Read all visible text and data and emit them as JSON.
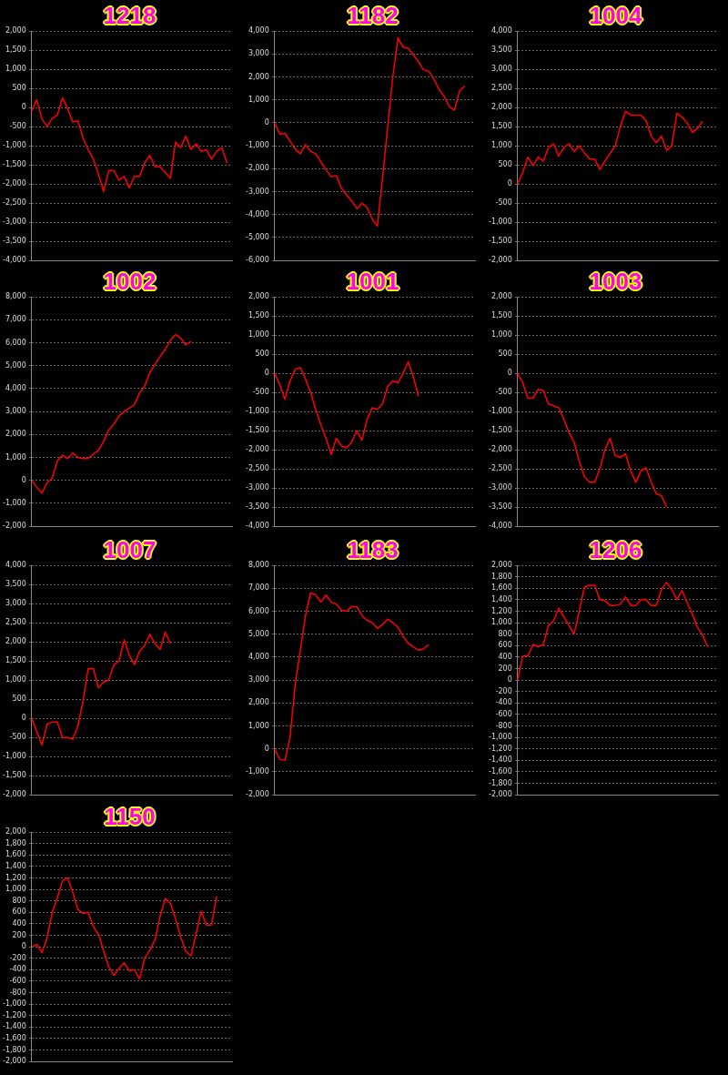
{
  "chart_data": [
    {
      "type": "line",
      "title": "1218",
      "categories": [
        null,
        null,
        null,
        null,
        null,
        null,
        null,
        null,
        null,
        null,
        null,
        null,
        null,
        null,
        null,
        null,
        null,
        null,
        null,
        null,
        null,
        null,
        null,
        null,
        null,
        null,
        null,
        null,
        null,
        null,
        null,
        null,
        null,
        null,
        null,
        null,
        null,
        null,
        null,
        null
      ],
      "series": [
        {
          "color": "#ff0000",
          "values": [
            -100,
            200,
            -300,
            -500,
            -280,
            -200,
            250,
            -30,
            -380,
            -350,
            -800,
            -1100,
            -1350,
            -1750,
            -2200,
            -1650,
            -1650,
            -1900,
            -1800,
            -2100,
            -1800,
            -1800,
            -1450,
            -1250,
            -1550,
            -1550,
            -1700,
            -1850,
            -900,
            -1050,
            -750,
            -1100,
            -950,
            -1150,
            -1100,
            -1350,
            -1150,
            -1050,
            -1450,
            null
          ]
        }
      ],
      "ylim": [
        -4000,
        2000
      ],
      "yticks": [
        {
          "value": -4000,
          "label": "-4,000"
        },
        {
          "value": -3500,
          "label": "-3,500"
        },
        {
          "value": -3000,
          "label": "-3,000"
        },
        {
          "value": -2500,
          "label": "-2,500"
        },
        {
          "value": -2000,
          "label": "-2,000"
        },
        {
          "value": -1500,
          "label": "-1,500"
        },
        {
          "value": -1000,
          "label": "-1,000"
        },
        -500,
        0,
        500,
        {
          "value": 1000,
          "label": "1,000"
        },
        {
          "value": 1500,
          "label": "1,500"
        },
        {
          "value": 2000,
          "label": "2,000"
        }
      ],
      "grid": "y",
      "tick_labels": "y",
      "marker": "none",
      "line_style": "solid"
    },
    {
      "type": "line",
      "title": "1182",
      "categories": [
        null,
        null,
        null,
        null,
        null,
        null,
        null,
        null,
        null,
        null,
        null,
        null,
        null,
        null,
        null,
        null,
        null,
        null,
        null,
        null,
        null,
        null,
        null,
        null,
        null,
        null,
        null,
        null,
        null,
        null,
        null,
        null,
        null,
        null,
        null,
        null,
        null,
        null,
        null,
        null
      ],
      "series": [
        {
          "color": "#ff0000",
          "values": [
            0,
            -500,
            -450,
            -800,
            -1150,
            -1350,
            -950,
            -1250,
            -1350,
            -1700,
            -2050,
            -2350,
            -2300,
            -2850,
            -3150,
            -3400,
            -3750,
            -3500,
            -3700,
            -4200,
            -4500,
            -2400,
            -200,
            2000,
            3700,
            3300,
            3250,
            2950,
            2650,
            2300,
            2250,
            1900,
            1450,
            1150,
            700,
            550,
            1400,
            1600,
            null,
            null
          ]
        }
      ],
      "ylim": [
        -6000,
        4000
      ],
      "yticks": [
        {
          "value": -6000,
          "label": "-6,000"
        },
        {
          "value": -5000,
          "label": "-5,000"
        },
        {
          "value": -4000,
          "label": "-4,000"
        },
        {
          "value": -3000,
          "label": "-3,000"
        },
        {
          "value": -2000,
          "label": "-2,000"
        },
        {
          "value": -1000,
          "label": "-1,000"
        },
        0,
        {
          "value": 1000,
          "label": "1,000"
        },
        {
          "value": 2000,
          "label": "2,000"
        },
        {
          "value": 3000,
          "label": "3,000"
        },
        {
          "value": 4000,
          "label": "4,000"
        }
      ],
      "grid": "y",
      "tick_labels": "y",
      "marker": "none",
      "line_style": "solid"
    },
    {
      "type": "line",
      "title": "1004",
      "categories": [
        null,
        null,
        null,
        null,
        null,
        null,
        null,
        null,
        null,
        null,
        null,
        null,
        null,
        null,
        null,
        null,
        null,
        null,
        null,
        null,
        null,
        null,
        null,
        null,
        null,
        null,
        null,
        null,
        null,
        null,
        null,
        null,
        null,
        null,
        null,
        null,
        null,
        null,
        null,
        null
      ],
      "series": [
        {
          "color": "#ff0000",
          "values": [
            0,
            300,
            700,
            480,
            700,
            600,
            950,
            1050,
            730,
            950,
            1050,
            850,
            1000,
            820,
            650,
            650,
            380,
            600,
            800,
            1000,
            1500,
            1900,
            1800,
            1800,
            1800,
            1650,
            1250,
            1080,
            1250,
            880,
            1000,
            1850,
            1750,
            1600,
            1350,
            1450,
            1640,
            null,
            null,
            null
          ]
        }
      ],
      "ylim": [
        -2000,
        4000
      ],
      "yticks": [
        {
          "value": -2000,
          "label": "-2,000"
        },
        {
          "value": -1500,
          "label": "-1,500"
        },
        {
          "value": -1000,
          "label": "-1,000"
        },
        -500,
        0,
        500,
        {
          "value": 1000,
          "label": "1,000"
        },
        {
          "value": 1500,
          "label": "1,500"
        },
        {
          "value": 2000,
          "label": "2,000"
        },
        {
          "value": 2500,
          "label": "2,500"
        },
        {
          "value": 3000,
          "label": "3,000"
        },
        {
          "value": 3500,
          "label": "3,500"
        },
        {
          "value": 4000,
          "label": "4,000"
        }
      ],
      "grid": "y",
      "tick_labels": "y",
      "marker": "none",
      "line_style": "solid"
    },
    {
      "type": "line",
      "title": "1002",
      "categories": [
        null,
        null,
        null,
        null,
        null,
        null,
        null,
        null,
        null,
        null,
        null,
        null,
        null,
        null,
        null,
        null,
        null,
        null,
        null,
        null,
        null,
        null,
        null,
        null,
        null,
        null,
        null,
        null,
        null,
        null,
        null,
        null,
        null,
        null,
        null,
        null,
        null,
        null,
        null,
        null
      ],
      "series": [
        {
          "color": "#ff0000",
          "values": [
            0,
            -300,
            -550,
            -100,
            100,
            850,
            1100,
            950,
            1200,
            1000,
            950,
            950,
            1150,
            1300,
            1700,
            2200,
            2450,
            2800,
            3000,
            3150,
            3300,
            3800,
            4100,
            4700,
            5050,
            5400,
            5700,
            6100,
            6350,
            6200,
            5900,
            6050,
            null,
            null,
            null,
            null,
            null,
            null,
            null,
            null
          ]
        }
      ],
      "ylim": [
        -2000,
        8000
      ],
      "yticks": [
        {
          "value": -2000,
          "label": "-2,000"
        },
        {
          "value": -1000,
          "label": "-1,000"
        },
        0,
        {
          "value": 1000,
          "label": "1,000"
        },
        {
          "value": 2000,
          "label": "2,000"
        },
        {
          "value": 3000,
          "label": "3,000"
        },
        {
          "value": 4000,
          "label": "4,000"
        },
        {
          "value": 5000,
          "label": "5,000"
        },
        {
          "value": 6000,
          "label": "6,000"
        },
        {
          "value": 7000,
          "label": "7,000"
        },
        {
          "value": 8000,
          "label": "8,000"
        }
      ],
      "grid": "y",
      "tick_labels": "y",
      "marker": "none",
      "line_style": "solid"
    },
    {
      "type": "line",
      "title": "1001",
      "categories": [
        null,
        null,
        null,
        null,
        null,
        null,
        null,
        null,
        null,
        null,
        null,
        null,
        null,
        null,
        null,
        null,
        null,
        null,
        null,
        null,
        null,
        null,
        null,
        null,
        null,
        null,
        null,
        null,
        null,
        null,
        null,
        null,
        null,
        null,
        null,
        null,
        null,
        null,
        null,
        null
      ],
      "series": [
        {
          "color": "#ff0000",
          "values": [
            0,
            -300,
            -680,
            -200,
            100,
            150,
            -150,
            -500,
            -950,
            -1350,
            -1700,
            -2130,
            -1700,
            -1900,
            -1950,
            -1800,
            -1500,
            -1750,
            -1200,
            -900,
            -950,
            -800,
            -350,
            -200,
            -250,
            0,
            300,
            -100,
            -600,
            null,
            null,
            null,
            null,
            null,
            null,
            null,
            null,
            null,
            null,
            null
          ]
        }
      ],
      "ylim": [
        -4000,
        2000
      ],
      "yticks": [
        {
          "value": -4000,
          "label": "-4,000"
        },
        {
          "value": -3500,
          "label": "-3,500"
        },
        {
          "value": -3000,
          "label": "-3,000"
        },
        {
          "value": -2500,
          "label": "-2,500"
        },
        {
          "value": -2000,
          "label": "-2,000"
        },
        {
          "value": -1500,
          "label": "-1,500"
        },
        {
          "value": -1000,
          "label": "-1,000"
        },
        -500,
        0,
        500,
        {
          "value": 1000,
          "label": "1,000"
        },
        {
          "value": 1500,
          "label": "1,500"
        },
        {
          "value": 2000,
          "label": "2,000"
        }
      ],
      "grid": "y",
      "tick_labels": "y",
      "marker": "none",
      "line_style": "solid"
    },
    {
      "type": "line",
      "title": "1003",
      "categories": [
        null,
        null,
        null,
        null,
        null,
        null,
        null,
        null,
        null,
        null,
        null,
        null,
        null,
        null,
        null,
        null,
        null,
        null,
        null,
        null,
        null,
        null,
        null,
        null,
        null,
        null,
        null,
        null,
        null,
        null,
        null,
        null,
        null,
        null,
        null,
        null,
        null,
        null,
        null,
        null
      ],
      "series": [
        {
          "color": "#ff0000",
          "values": [
            0,
            -250,
            -650,
            -650,
            -420,
            -450,
            -800,
            -850,
            -900,
            -1200,
            -1550,
            -1800,
            -2300,
            -2700,
            -2850,
            -2850,
            -2500,
            -2000,
            -1700,
            -2150,
            -2200,
            -2100,
            -2550,
            -2850,
            -2550,
            -2470,
            -2850,
            -3150,
            -3200,
            -3500,
            null,
            null,
            null,
            null,
            null,
            null,
            null,
            null,
            null,
            null
          ]
        }
      ],
      "ylim": [
        -4000,
        2000
      ],
      "yticks": [
        {
          "value": -4000,
          "label": "-4,000"
        },
        {
          "value": -3500,
          "label": "-3,500"
        },
        {
          "value": -3000,
          "label": "-3,000"
        },
        {
          "value": -2500,
          "label": "-2,500"
        },
        {
          "value": -2000,
          "label": "-2,000"
        },
        {
          "value": -1500,
          "label": "-1,500"
        },
        {
          "value": -1000,
          "label": "-1,000"
        },
        -500,
        0,
        500,
        {
          "value": 1000,
          "label": "1,000"
        },
        {
          "value": 1500,
          "label": "1,500"
        },
        {
          "value": 2000,
          "label": "2,000"
        }
      ],
      "grid": "y",
      "tick_labels": "y",
      "marker": "none",
      "line_style": "solid"
    },
    {
      "type": "line",
      "title": "1007",
      "categories": [
        null,
        null,
        null,
        null,
        null,
        null,
        null,
        null,
        null,
        null,
        null,
        null,
        null,
        null,
        null,
        null,
        null,
        null,
        null,
        null,
        null,
        null,
        null,
        null,
        null,
        null,
        null,
        null,
        null,
        null,
        null,
        null,
        null,
        null,
        null,
        null,
        null,
        null,
        null,
        null
      ],
      "series": [
        {
          "color": "#ff0000",
          "values": [
            0,
            -350,
            -700,
            -150,
            -100,
            -100,
            -500,
            -500,
            -550,
            -200,
            450,
            1300,
            1300,
            800,
            950,
            1000,
            1400,
            1500,
            2050,
            1650,
            1400,
            1750,
            1900,
            2200,
            1950,
            1800,
            2250,
            1950,
            null,
            null,
            null,
            null,
            null,
            null,
            null,
            null,
            null,
            null,
            null,
            null
          ]
        }
      ],
      "ylim": [
        -2000,
        4000
      ],
      "yticks": [
        {
          "value": -2000,
          "label": "-2,000"
        },
        {
          "value": -1500,
          "label": "-1,500"
        },
        {
          "value": -1000,
          "label": "-1,000"
        },
        -500,
        0,
        500,
        {
          "value": 1000,
          "label": "1,000"
        },
        {
          "value": 1500,
          "label": "1,500"
        },
        {
          "value": 2000,
          "label": "2,000"
        },
        {
          "value": 2500,
          "label": "2,500"
        },
        {
          "value": 3000,
          "label": "3,000"
        },
        {
          "value": 3500,
          "label": "3,500"
        },
        {
          "value": 4000,
          "label": "4,000"
        }
      ],
      "grid": "y",
      "tick_labels": "y",
      "marker": "none",
      "line_style": "solid"
    },
    {
      "type": "line",
      "title": "1183",
      "categories": [
        null,
        null,
        null,
        null,
        null,
        null,
        null,
        null,
        null,
        null,
        null,
        null,
        null,
        null,
        null,
        null,
        null,
        null,
        null,
        null,
        null,
        null,
        null,
        null,
        null,
        null,
        null,
        null,
        null,
        null,
        null,
        null,
        null,
        null,
        null,
        null,
        null,
        null,
        null,
        null
      ],
      "series": [
        {
          "color": "#ff0000",
          "values": [
            0,
            -450,
            -500,
            500,
            2800,
            4300,
            5800,
            6800,
            6700,
            6400,
            6700,
            6400,
            6300,
            6050,
            6000,
            6200,
            6200,
            5800,
            5600,
            5500,
            5250,
            5420,
            5650,
            5500,
            5300,
            4900,
            4600,
            4450,
            4300,
            4350,
            4550,
            null,
            null,
            null,
            null,
            null,
            null,
            null,
            null,
            null
          ]
        }
      ],
      "ylim": [
        -2000,
        8000
      ],
      "yticks": [
        {
          "value": -2000,
          "label": "-2,000"
        },
        {
          "value": -1000,
          "label": "-1,000"
        },
        0,
        {
          "value": 1000,
          "label": "1,000"
        },
        {
          "value": 2000,
          "label": "2,000"
        },
        {
          "value": 3000,
          "label": "3,000"
        },
        {
          "value": 4000,
          "label": "4,000"
        },
        {
          "value": 5000,
          "label": "5,000"
        },
        {
          "value": 6000,
          "label": "6,000"
        },
        {
          "value": 7000,
          "label": "7,000"
        },
        {
          "value": 8000,
          "label": "8,000"
        }
      ],
      "grid": "y",
      "tick_labels": "y",
      "marker": "none",
      "line_style": "solid"
    },
    {
      "type": "line",
      "title": "1206",
      "categories": [
        null,
        null,
        null,
        null,
        null,
        null,
        null,
        null,
        null,
        null,
        null,
        null,
        null,
        null,
        null,
        null,
        null,
        null,
        null,
        null,
        null,
        null,
        null,
        null,
        null,
        null,
        null,
        null,
        null,
        null,
        null,
        null,
        null,
        null,
        null,
        null,
        null,
        null,
        null,
        null
      ],
      "series": [
        {
          "color": "#ff0000",
          "values": [
            0,
            420,
            420,
            620,
            580,
            620,
            950,
            1030,
            1250,
            1100,
            950,
            800,
            1200,
            1620,
            1650,
            1650,
            1400,
            1380,
            1300,
            1300,
            1320,
            1450,
            1300,
            1300,
            1400,
            1400,
            1300,
            1300,
            1580,
            1700,
            1580,
            1400,
            1560,
            1350,
            1150,
            920,
            780,
            580,
            null,
            null
          ]
        }
      ],
      "ylim": [
        -2000,
        2000
      ],
      "yticks": [
        {
          "value": -2000,
          "label": "-2,000"
        },
        {
          "value": -1800,
          "label": "-1,800"
        },
        {
          "value": -1600,
          "label": "-1,600"
        },
        {
          "value": -1400,
          "label": "-1,400"
        },
        {
          "value": -1200,
          "label": "-1,200"
        },
        {
          "value": -1000,
          "label": "-1,000"
        },
        -800,
        -600,
        -400,
        -200,
        0,
        200,
        400,
        600,
        800,
        {
          "value": 1000,
          "label": "1,000"
        },
        {
          "value": 1200,
          "label": "1,200"
        },
        {
          "value": 1400,
          "label": "1,400"
        },
        {
          "value": 1600,
          "label": "1,600"
        },
        {
          "value": 1800,
          "label": "1,800"
        },
        {
          "value": 2000,
          "label": "2,000"
        }
      ],
      "grid": "y",
      "tick_labels": "y",
      "marker": "none",
      "line_style": "solid"
    },
    {
      "type": "line",
      "title": "1150",
      "categories": [
        null,
        null,
        null,
        null,
        null,
        null,
        null,
        null,
        null,
        null,
        null,
        null,
        null,
        null,
        null,
        null,
        null,
        null,
        null,
        null,
        null,
        null,
        null,
        null,
        null,
        null,
        null,
        null,
        null,
        null,
        null,
        null,
        null,
        null,
        null,
        null,
        null,
        null,
        null,
        null
      ],
      "series": [
        {
          "color": "#ff0000",
          "values": [
            0,
            40,
            -100,
            150,
            600,
            850,
            1150,
            1200,
            950,
            650,
            580,
            600,
            350,
            220,
            -70,
            -350,
            -500,
            -380,
            -280,
            -420,
            -400,
            -560,
            -200,
            -60,
            120,
            530,
            840,
            760,
            490,
            170,
            -80,
            -160,
            220,
            620,
            380,
            380,
            880,
            null,
            null,
            null
          ]
        }
      ],
      "ylim": [
        -2000,
        2000
      ],
      "yticks": [
        {
          "value": -2000,
          "label": "-2,000"
        },
        {
          "value": -1800,
          "label": "-1,800"
        },
        {
          "value": -1600,
          "label": "-1,600"
        },
        {
          "value": -1400,
          "label": "-1,400"
        },
        {
          "value": -1200,
          "label": "-1,200"
        },
        {
          "value": -1000,
          "label": "-1,000"
        },
        -800,
        -600,
        -400,
        -200,
        0,
        200,
        400,
        600,
        800,
        {
          "value": 1000,
          "label": "1,000"
        },
        {
          "value": 1200,
          "label": "1,200"
        },
        {
          "value": 1400,
          "label": "1,400"
        },
        {
          "value": 1600,
          "label": "1,600"
        },
        {
          "value": 1800,
          "label": "1,800"
        },
        {
          "value": 2000,
          "label": "2,000"
        }
      ],
      "grid": "y",
      "tick_labels": "y",
      "marker": "none",
      "line_style": "solid"
    }
  ]
}
